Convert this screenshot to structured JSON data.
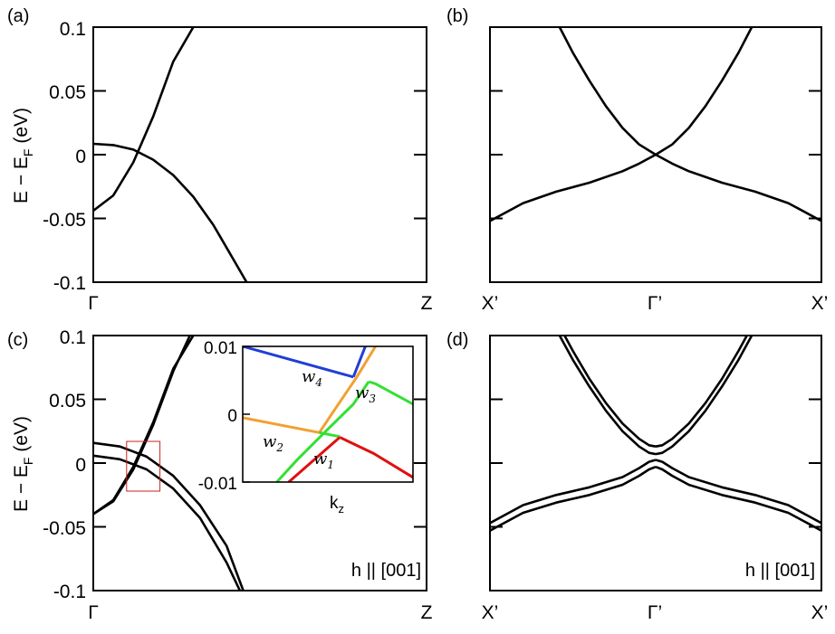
{
  "panels": [
    {
      "id": "a",
      "label": "(a)",
      "ylabel": {
        "main": "E − E",
        "sub": "F",
        "tail": " (eV)"
      },
      "ytick_labels": [
        "0.1",
        "0.05",
        "0",
        "-0.05",
        "-0.1"
      ],
      "xtick_labels": [
        "Γ",
        "Z"
      ],
      "note": ""
    },
    {
      "id": "b",
      "label": "(b)",
      "xtick_labels": [
        "X’",
        "Γ’",
        "X’"
      ],
      "note": ""
    },
    {
      "id": "c",
      "label": "(c)",
      "ylabel": {
        "main": "E − E",
        "sub": "F",
        "tail": " (eV)"
      },
      "ytick_labels": [
        "0.1",
        "0.05",
        "0",
        "-0.05",
        "-0.1"
      ],
      "xtick_labels": [
        "Γ",
        "Z"
      ],
      "note": "h || [001]",
      "inset": {
        "ytick_labels": [
          "0.01",
          "0",
          "-0.01"
        ],
        "xlabel": {
          "main": "k",
          "sub": "z"
        },
        "weyl_labels": [
          {
            "main": "w",
            "sub": "1"
          },
          {
            "main": "w",
            "sub": "2"
          },
          {
            "main": "w",
            "sub": "3"
          },
          {
            "main": "w",
            "sub": "4"
          }
        ]
      }
    },
    {
      "id": "d",
      "label": "(d)",
      "xtick_labels": [
        "X’",
        "Γ’",
        "X’"
      ],
      "note": "h || [001]"
    }
  ],
  "colors": {
    "axes": "#000000",
    "band": "#000000",
    "zoom_box": "#cc2222",
    "inset_blue": "#1f3fd6",
    "inset_orange": "#f2a030",
    "inset_green": "#33e033",
    "inset_red": "#e01010"
  },
  "chart_data": [
    {
      "panel": "a",
      "type": "line",
      "x_range": [
        0,
        1
      ],
      "ylim": [
        -0.1,
        0.1
      ],
      "yticks": [
        0.1,
        0.05,
        0,
        -0.05,
        -0.1
      ],
      "series": [
        {
          "x": [
            0,
            0.06,
            0.12,
            0.18,
            0.24,
            0.3
          ],
          "y": [
            -0.044,
            -0.032,
            -0.006,
            0.03,
            0.073,
            0.1
          ]
        },
        {
          "x": [
            0,
            0.06,
            0.12,
            0.18,
            0.24,
            0.3,
            0.36,
            0.42,
            0.46
          ],
          "y": [
            0.0085,
            0.0075,
            0.004,
            -0.004,
            -0.016,
            -0.033,
            -0.055,
            -0.082,
            -0.1
          ]
        }
      ]
    },
    {
      "panel": "b",
      "type": "line",
      "x_range": [
        -1,
        1
      ],
      "ylim": [
        -0.1,
        0.1
      ],
      "series": [
        {
          "x": [
            -1,
            -0.8,
            -0.6,
            -0.4,
            -0.2,
            -0.1,
            0
          ],
          "y": [
            -0.052,
            -0.038,
            -0.029,
            -0.022,
            -0.013,
            -0.007,
            0
          ]
        },
        {
          "x": [
            0,
            0.1,
            0.2,
            0.4,
            0.6,
            0.8,
            1
          ],
          "y": [
            0,
            -0.007,
            -0.013,
            -0.022,
            -0.029,
            -0.038,
            -0.052
          ]
        },
        {
          "x": [
            -0.58,
            -0.5,
            -0.4,
            -0.3,
            -0.2,
            -0.1,
            0
          ],
          "y": [
            0.1,
            0.08,
            0.058,
            0.038,
            0.021,
            0.008,
            0
          ]
        },
        {
          "x": [
            0,
            0.1,
            0.2,
            0.3,
            0.4,
            0.5,
            0.58
          ],
          "y": [
            0,
            0.008,
            0.021,
            0.038,
            0.058,
            0.08,
            0.1
          ]
        }
      ]
    },
    {
      "panel": "c",
      "type": "line",
      "x_range": [
        0,
        1
      ],
      "ylim": [
        -0.1,
        0.1
      ],
      "yticks": [
        0.1,
        0.05,
        0,
        -0.05,
        -0.1
      ],
      "series": [
        {
          "x": [
            0,
            0.06,
            0.12,
            0.18,
            0.24,
            0.29
          ],
          "y": [
            -0.04,
            -0.03,
            -0.005,
            0.03,
            0.072,
            0.1
          ]
        },
        {
          "x": [
            0,
            0.06,
            0.12,
            0.18,
            0.24,
            0.3
          ],
          "y": [
            -0.04,
            -0.029,
            -0.003,
            0.032,
            0.074,
            0.1
          ]
        },
        {
          "x": [
            0,
            0.08,
            0.16,
            0.24,
            0.32,
            0.4,
            0.45
          ],
          "y": [
            0.0158,
            0.013,
            0.005,
            -0.01,
            -0.033,
            -0.065,
            -0.1
          ]
        },
        {
          "x": [
            0,
            0.08,
            0.16,
            0.24,
            0.32,
            0.4,
            0.44
          ],
          "y": [
            0.0058,
            0.003,
            -0.005,
            -0.02,
            -0.043,
            -0.078,
            -0.1
          ]
        }
      ],
      "zoom_box": {
        "x": [
          0.1,
          0.2
        ],
        "y": [
          -0.022,
          0.017
        ]
      },
      "inset": {
        "ylim": [
          -0.01,
          0.01
        ],
        "yticks": [
          0.01,
          0,
          -0.01
        ],
        "series": [
          {
            "color": "blue",
            "x": [
              0,
              0.65
            ],
            "y": [
              0.01,
              0.0055
            ]
          },
          {
            "color": "blue",
            "x": [
              0.65,
              0.72
            ],
            "y": [
              0.0055,
              0.01
            ]
          },
          {
            "color": "orange",
            "x": [
              0,
              0.45
            ],
            "y": [
              -0.0005,
              -0.0027
            ]
          },
          {
            "color": "orange",
            "x": [
              0.45,
              0.53,
              0.67,
              0.78
            ],
            "y": [
              -0.0027,
              0.0003,
              0.0055,
              0.01
            ]
          },
          {
            "color": "green",
            "x": [
              0.2,
              0.32,
              0.48,
              0.65,
              0.74
            ],
            "y": [
              -0.01,
              -0.0067,
              -0.0027,
              0.0015,
              0.0048
            ]
          },
          {
            "color": "green",
            "x": [
              0.74,
              0.78,
              1
            ],
            "y": [
              0.0048,
              0.0045,
              0.0015
            ]
          },
          {
            "color": "green",
            "x": [
              0.45,
              0.57
            ],
            "y": [
              -0.0027,
              -0.0033
            ]
          },
          {
            "color": "red",
            "x": [
              0.27,
              0.37,
              0.47,
              0.57
            ],
            "y": [
              -0.01,
              -0.0078,
              -0.0056,
              -0.0034
            ]
          },
          {
            "color": "red",
            "x": [
              0.57,
              0.77,
              1
            ],
            "y": [
              -0.0034,
              -0.0058,
              -0.0093
            ]
          }
        ]
      }
    },
    {
      "panel": "d",
      "type": "line",
      "x_range": [
        -1,
        1
      ],
      "ylim": [
        -0.1,
        0.1
      ],
      "series": [
        {
          "x": [
            -1,
            -0.8,
            -0.6,
            -0.4,
            -0.2,
            -0.1,
            -0.04,
            0
          ],
          "y": [
            -0.047,
            -0.033,
            -0.025,
            -0.019,
            -0.011,
            -0.004,
            0.001,
            0.0025
          ]
        },
        {
          "x": [
            0,
            0.04,
            0.1,
            0.2,
            0.4,
            0.6,
            0.8,
            1
          ],
          "y": [
            0.0025,
            0.001,
            -0.004,
            -0.011,
            -0.019,
            -0.025,
            -0.033,
            -0.047
          ]
        },
        {
          "x": [
            -1,
            -0.8,
            -0.6,
            -0.4,
            -0.2,
            -0.1,
            -0.04,
            0
          ],
          "y": [
            -0.053,
            -0.039,
            -0.031,
            -0.025,
            -0.017,
            -0.01,
            -0.005,
            -0.003
          ]
        },
        {
          "x": [
            0,
            0.04,
            0.1,
            0.2,
            0.4,
            0.6,
            0.8,
            1
          ],
          "y": [
            -0.003,
            -0.005,
            -0.01,
            -0.017,
            -0.025,
            -0.031,
            -0.039,
            -0.053
          ]
        },
        {
          "x": [
            -0.58,
            -0.5,
            -0.4,
            -0.3,
            -0.2,
            -0.1,
            -0.04,
            0
          ],
          "y": [
            0.1,
            0.081,
            0.06,
            0.041,
            0.025,
            0.013,
            0.008,
            0.007
          ]
        },
        {
          "x": [
            0,
            0.04,
            0.1,
            0.2,
            0.3,
            0.4,
            0.5,
            0.58
          ],
          "y": [
            0.007,
            0.008,
            0.013,
            0.025,
            0.041,
            0.06,
            0.081,
            0.1
          ]
        },
        {
          "x": [
            -0.55,
            -0.5,
            -0.4,
            -0.3,
            -0.2,
            -0.1,
            -0.04,
            0
          ],
          "y": [
            0.1,
            0.088,
            0.066,
            0.047,
            0.031,
            0.019,
            0.014,
            0.013
          ]
        },
        {
          "x": [
            0,
            0.04,
            0.1,
            0.2,
            0.3,
            0.4,
            0.5,
            0.55
          ],
          "y": [
            0.013,
            0.014,
            0.019,
            0.031,
            0.047,
            0.066,
            0.088,
            0.1
          ]
        }
      ]
    }
  ]
}
